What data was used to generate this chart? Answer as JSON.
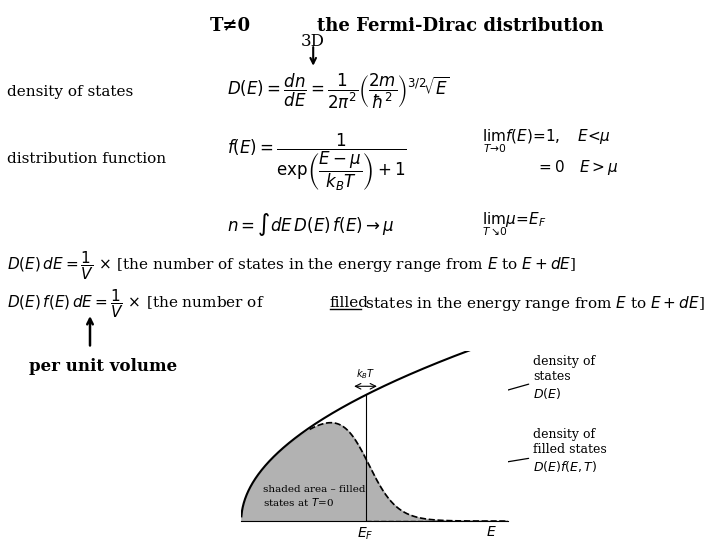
{
  "title_left": "T≠0",
  "title_right": "the Fermi-Dirac distribution",
  "label_3d": "3D",
  "bg_color": "#ffffff",
  "EF": 0.7,
  "E_max": 1.5,
  "kBT": 0.08,
  "shade_color": "#aaaaaa"
}
